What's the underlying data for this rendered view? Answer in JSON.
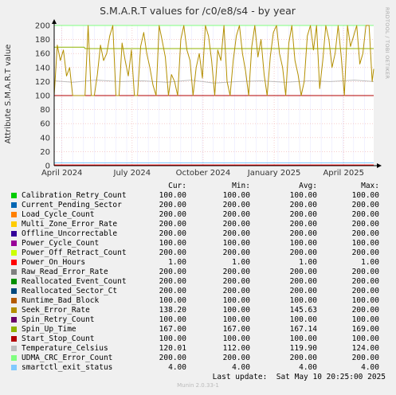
{
  "title": "S.M.A.R.T values for /c0/e8/s4 - by year",
  "watermark": "RRDTOOL / TOBI OETIKER",
  "footer": "Munin 2.0.33-1",
  "columns": [
    "Cur:",
    "Min:",
    "Avg:",
    "Max:"
  ],
  "last_update": "Last update:  Sat May 10 20:25:00 2025",
  "series": [
    {
      "name": "Calibration_Retry_Count",
      "color": "#00cc00",
      "cur": "100.00",
      "min": "100.00",
      "avg": "100.00",
      "max": "100.00"
    },
    {
      "name": "Current_Pending_Sector",
      "color": "#0066b3",
      "cur": "200.00",
      "min": "200.00",
      "avg": "200.00",
      "max": "200.00"
    },
    {
      "name": "Load_Cycle_Count",
      "color": "#ff8000",
      "cur": "200.00",
      "min": "200.00",
      "avg": "200.00",
      "max": "200.00"
    },
    {
      "name": "Multi_Zone_Error_Rate",
      "color": "#ffcc00",
      "cur": "200.00",
      "min": "200.00",
      "avg": "200.00",
      "max": "200.00"
    },
    {
      "name": "Offline_Uncorrectable",
      "color": "#330099",
      "cur": "200.00",
      "min": "200.00",
      "avg": "200.00",
      "max": "200.00"
    },
    {
      "name": "Power_Cycle_Count",
      "color": "#990099",
      "cur": "100.00",
      "min": "100.00",
      "avg": "100.00",
      "max": "100.00"
    },
    {
      "name": "Power_Off_Retract_Count",
      "color": "#ccff00",
      "cur": "200.00",
      "min": "200.00",
      "avg": "200.00",
      "max": "200.00"
    },
    {
      "name": "Power_On_Hours",
      "color": "#ff0000",
      "cur": "1.00",
      "min": "1.00",
      "avg": "1.00",
      "max": "1.00"
    },
    {
      "name": "Raw_Read_Error_Rate",
      "color": "#808080",
      "cur": "200.00",
      "min": "200.00",
      "avg": "200.00",
      "max": "200.00"
    },
    {
      "name": "Reallocated_Event_Count",
      "color": "#008f00",
      "cur": "200.00",
      "min": "200.00",
      "avg": "200.00",
      "max": "200.00"
    },
    {
      "name": "Reallocated_Sector_Ct",
      "color": "#00487d",
      "cur": "200.00",
      "min": "200.00",
      "avg": "200.00",
      "max": "200.00"
    },
    {
      "name": "Runtime_Bad_Block",
      "color": "#b35a00",
      "cur": "100.00",
      "min": "100.00",
      "avg": "100.00",
      "max": "100.00"
    },
    {
      "name": "Seek_Error_Rate",
      "color": "#b38f00",
      "cur": "138.20",
      "min": "100.00",
      "avg": "145.63",
      "max": "200.00"
    },
    {
      "name": "Spin_Retry_Count",
      "color": "#6b006b",
      "cur": "100.00",
      "min": "100.00",
      "avg": "100.00",
      "max": "100.00"
    },
    {
      "name": "Spin_Up_Time",
      "color": "#8fb300",
      "cur": "167.00",
      "min": "167.00",
      "avg": "167.14",
      "max": "169.00"
    },
    {
      "name": "Start_Stop_Count",
      "color": "#b30000",
      "cur": "100.00",
      "min": "100.00",
      "avg": "100.00",
      "max": "100.00"
    },
    {
      "name": "Temperature_Celsius",
      "color": "#bebebe",
      "cur": "120.01",
      "min": "112.00",
      "avg": "119.90",
      "max": "124.00"
    },
    {
      "name": "UDMA_CRC_Error_Count",
      "color": "#80ff80",
      "cur": "200.00",
      "min": "200.00",
      "avg": "200.00",
      "max": "200.00"
    },
    {
      "name": "smartctl_exit_status",
      "color": "#80c9ff",
      "cur": "4.00",
      "min": "4.00",
      "avg": "4.00",
      "max": "4.00"
    }
  ],
  "chart_data": {
    "type": "line",
    "title": "S.M.A.R.T values for /c0/e8/s4 - by year",
    "ylabel": "Attribute S.M.A.R.T value",
    "xlabel": "",
    "ylim": [
      0,
      200
    ],
    "xlim": [
      "2024-03-22",
      "2025-05-10"
    ],
    "yticks": [
      0,
      20,
      40,
      60,
      80,
      100,
      120,
      140,
      160,
      180,
      200
    ],
    "xticks": [
      {
        "label": "April 2024",
        "date": "2024-04-01"
      },
      {
        "label": "July 2024",
        "date": "2024-07-01"
      },
      {
        "label": "October 2024",
        "date": "2024-10-01"
      },
      {
        "label": "January 2025",
        "date": "2025-01-01"
      },
      {
        "label": "April 2025",
        "date": "2025-04-01"
      }
    ],
    "grid": true,
    "constant_series": [
      {
        "name": "Calibration_Retry_Count",
        "value": 100
      },
      {
        "name": "Current_Pending_Sector",
        "value": 200
      },
      {
        "name": "Load_Cycle_Count",
        "value": 200
      },
      {
        "name": "Multi_Zone_Error_Rate",
        "value": 200
      },
      {
        "name": "Offline_Uncorrectable",
        "value": 200
      },
      {
        "name": "Power_Cycle_Count",
        "value": 100
      },
      {
        "name": "Power_Off_Retract_Count",
        "value": 200
      },
      {
        "name": "Power_On_Hours",
        "value": 1
      },
      {
        "name": "Raw_Read_Error_Rate",
        "value": 200
      },
      {
        "name": "Reallocated_Event_Count",
        "value": 200
      },
      {
        "name": "Reallocated_Sector_Ct",
        "value": 200
      },
      {
        "name": "Runtime_Bad_Block",
        "value": 100
      },
      {
        "name": "Spin_Retry_Count",
        "value": 100
      },
      {
        "name": "Start_Stop_Count",
        "value": 100
      },
      {
        "name": "UDMA_CRC_Error_Count",
        "value": 200
      },
      {
        "name": "smartctl_exit_status",
        "value": 4
      }
    ],
    "spin_up_time": {
      "name": "Spin_Up_Time",
      "x": [
        "2024-03-22",
        "2024-04-30",
        "2024-05-01",
        "2025-05-10"
      ],
      "y": [
        169,
        169,
        167,
        167
      ]
    },
    "temperature": {
      "name": "Temperature_Celsius",
      "x": [
        "2024-03-22",
        "2024-04-15",
        "2024-05-15",
        "2024-06-15",
        "2024-07-15",
        "2024-08-15",
        "2024-09-15",
        "2024-10-15",
        "2024-11-15",
        "2024-12-15",
        "2025-01-15",
        "2025-02-15",
        "2025-03-15",
        "2025-04-15",
        "2025-05-10"
      ],
      "y": [
        121,
        119,
        122,
        120,
        121,
        119,
        122,
        118,
        120,
        121,
        119,
        121,
        120,
        122,
        120
      ]
    },
    "seek_error_rate": {
      "name": "Seek_Error_Rate",
      "x": [
        "2024-03-22",
        "2024-03-26",
        "2024-03-30",
        "2024-04-03",
        "2024-04-07",
        "2024-04-11",
        "2024-04-15",
        "2024-04-19",
        "2024-04-23",
        "2024-04-27",
        "2024-05-01",
        "2024-05-05",
        "2024-05-09",
        "2024-05-13",
        "2024-05-17",
        "2024-05-21",
        "2024-05-25",
        "2024-05-29",
        "2024-06-02",
        "2024-06-06",
        "2024-06-10",
        "2024-06-14",
        "2024-06-18",
        "2024-06-22",
        "2024-06-26",
        "2024-06-30",
        "2024-07-04",
        "2024-07-08",
        "2024-07-12",
        "2024-07-16",
        "2024-07-20",
        "2024-07-24",
        "2024-07-28",
        "2024-08-01",
        "2024-08-05",
        "2024-08-09",
        "2024-08-13",
        "2024-08-17",
        "2024-08-21",
        "2024-08-25",
        "2024-08-29",
        "2024-09-02",
        "2024-09-06",
        "2024-09-10",
        "2024-09-14",
        "2024-09-18",
        "2024-09-22",
        "2024-09-26",
        "2024-09-30",
        "2024-10-04",
        "2024-10-08",
        "2024-10-12",
        "2024-10-16",
        "2024-10-20",
        "2024-10-24",
        "2024-10-28",
        "2024-11-01",
        "2024-11-05",
        "2024-11-09",
        "2024-11-13",
        "2024-11-17",
        "2024-11-21",
        "2024-11-25",
        "2024-11-29",
        "2024-12-03",
        "2024-12-07",
        "2024-12-11",
        "2024-12-15",
        "2024-12-19",
        "2024-12-23",
        "2024-12-27",
        "2024-12-31",
        "2025-01-04",
        "2025-01-08",
        "2025-01-12",
        "2025-01-16",
        "2025-01-20",
        "2025-01-24",
        "2025-01-28",
        "2025-02-01",
        "2025-02-05",
        "2025-02-09",
        "2025-02-13",
        "2025-02-17",
        "2025-02-21",
        "2025-02-25",
        "2025-03-01",
        "2025-03-05",
        "2025-03-09",
        "2025-03-13",
        "2025-03-17",
        "2025-03-21",
        "2025-03-25",
        "2025-03-29",
        "2025-04-02",
        "2025-04-06",
        "2025-04-10",
        "2025-04-14",
        "2025-04-18",
        "2025-04-22",
        "2025-04-26",
        "2025-04-30",
        "2025-05-04",
        "2025-05-08",
        "2025-05-10"
      ],
      "y": [
        100,
        172,
        150,
        165,
        128,
        140,
        100,
        100,
        100,
        100,
        100,
        200,
        100,
        100,
        130,
        172,
        150,
        160,
        185,
        200,
        100,
        100,
        175,
        150,
        128,
        165,
        100,
        100,
        170,
        190,
        160,
        140,
        115,
        100,
        200,
        178,
        155,
        100,
        130,
        120,
        100,
        180,
        200,
        165,
        150,
        100,
        140,
        160,
        125,
        200,
        185,
        150,
        100,
        165,
        150,
        200,
        120,
        100,
        150,
        185,
        200,
        160,
        135,
        100,
        170,
        200,
        155,
        180,
        130,
        100,
        155,
        190,
        200,
        160,
        140,
        100,
        175,
        200,
        150,
        130,
        100,
        120,
        185,
        200,
        165,
        200,
        110,
        150,
        200,
        180,
        140,
        160,
        200,
        155,
        100,
        200,
        170,
        185,
        200,
        145,
        160,
        200,
        200,
        120,
        138
      ]
    }
  }
}
